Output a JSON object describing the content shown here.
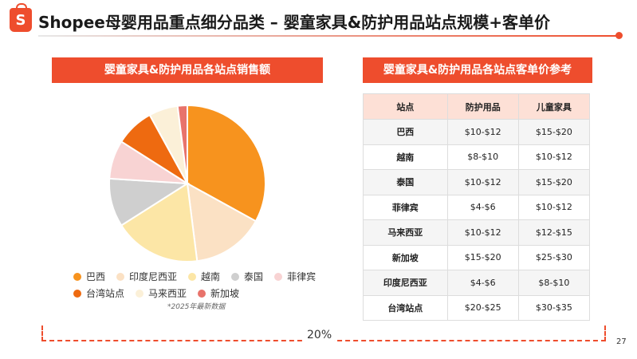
{
  "header": {
    "logo_letter": "S",
    "title": "Shopee母婴用品重点细分品类 – 婴童家具&防护用品站点规模+客单价"
  },
  "left_panel": {
    "banner": "婴童家具&防护用品各站点销售额",
    "note": "*2025年最新数据"
  },
  "chart_data": {
    "type": "pie",
    "slices": [
      {
        "name": "巴西",
        "value": 33,
        "color": "#f7931e"
      },
      {
        "name": "印度尼西亚",
        "value": 15,
        "color": "#fbe1c4"
      },
      {
        "name": "越南",
        "value": 18,
        "color": "#fce6a6"
      },
      {
        "name": "泰国",
        "value": 10,
        "color": "#cfcfcf"
      },
      {
        "name": "菲律宾",
        "value": 8,
        "color": "#f8d3d3"
      },
      {
        "name": "台湾站点",
        "value": 8,
        "color": "#ee6a10"
      },
      {
        "name": "马来西亚",
        "value": 6,
        "color": "#fbf0d8"
      },
      {
        "name": "新加坡",
        "value": 2,
        "color": "#e8736b"
      }
    ],
    "legend_position": "bottom"
  },
  "right_panel": {
    "banner": "婴童家具&防护用品各站点客单价参考",
    "headers": [
      "站点",
      "防护用品",
      "儿童家具"
    ],
    "rows": [
      [
        "巴西",
        "$10-$12",
        "$15-$20"
      ],
      [
        "越南",
        "$8-$10",
        "$10-$12"
      ],
      [
        "泰国",
        "$10-$12",
        "$15-$20"
      ],
      [
        "菲律宾",
        "$4-$6",
        "$10-$12"
      ],
      [
        "马来西亚",
        "$10-$12",
        "$12-$15"
      ],
      [
        "新加坡",
        "$15-$20",
        "$25-$30"
      ],
      [
        "印度尼西亚",
        "$4-$6",
        "$8-$10"
      ],
      [
        "台湾站点",
        "$20-$25",
        "$30-$35"
      ]
    ]
  },
  "footer": {
    "percent": "20%",
    "page_number": "27"
  }
}
